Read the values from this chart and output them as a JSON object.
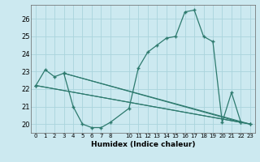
{
  "xlabel": "Humidex (Indice chaleur)",
  "background_color": "#cce9f0",
  "grid_color": "#aad4dc",
  "line_color": "#2d7a6e",
  "xlim": [
    -0.5,
    23.5
  ],
  "ylim": [
    19.5,
    26.8
  ],
  "yticks": [
    20,
    21,
    22,
    23,
    24,
    25,
    26
  ],
  "xticks": [
    0,
    1,
    2,
    3,
    4,
    5,
    6,
    7,
    8,
    10,
    11,
    12,
    13,
    14,
    15,
    16,
    17,
    18,
    19,
    20,
    21,
    22,
    23
  ],
  "xtick_labels": [
    "0",
    "1",
    "2",
    "3",
    "4",
    "5",
    "6",
    "7",
    "8",
    "10",
    "11",
    "12",
    "13",
    "14",
    "15",
    "16",
    "17",
    "18",
    "19",
    "20",
    "21",
    "22",
    "23"
  ],
  "main_series": {
    "x": [
      0,
      1,
      2,
      3,
      4,
      5,
      6,
      7,
      8,
      10,
      11,
      12,
      13,
      14,
      15,
      16,
      17,
      18,
      19,
      20,
      21,
      22,
      23
    ],
    "y": [
      22.2,
      23.1,
      22.7,
      22.9,
      21.0,
      20.0,
      19.8,
      19.8,
      20.1,
      20.9,
      23.2,
      24.1,
      24.5,
      24.9,
      25.0,
      26.4,
      26.5,
      25.0,
      24.7,
      20.1,
      21.8,
      20.1,
      20.0
    ]
  },
  "straight_lines": [
    {
      "x": [
        3,
        22
      ],
      "y": [
        22.9,
        20.1
      ]
    },
    {
      "x": [
        3,
        23
      ],
      "y": [
        22.9,
        20.0
      ]
    },
    {
      "x": [
        0,
        22
      ],
      "y": [
        22.2,
        20.1
      ]
    },
    {
      "x": [
        0,
        23
      ],
      "y": [
        22.2,
        20.0
      ]
    }
  ]
}
